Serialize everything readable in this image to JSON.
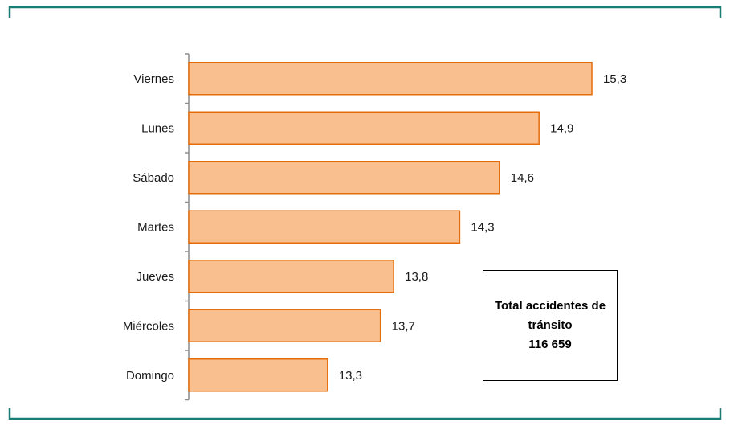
{
  "chart_data": {
    "type": "bar",
    "orientation": "horizontal",
    "categories": [
      "Viernes",
      "Lunes",
      "Sábado",
      "Martes",
      "Jueves",
      "Miércoles",
      "Domingo"
    ],
    "values": [
      15.3,
      14.9,
      14.6,
      14.3,
      13.8,
      13.7,
      13.3
    ],
    "value_labels": [
      "15,3",
      "14,9",
      "14,6",
      "14,3",
      "13,8",
      "13,7",
      "13,3"
    ],
    "title": "",
    "xlabel": "",
    "ylabel": "",
    "xlim": [
      12.25,
      15.3
    ],
    "grid": false,
    "legend": "none",
    "colors": {
      "bar_fill": "#f9bf8f",
      "bar_stroke": "#e46c0a",
      "frame": "#1a7d75",
      "axis": "#8c8c8c"
    }
  },
  "annotation": {
    "line1": "Total accidentes de",
    "line2": "tránsito",
    "line3": "116 659"
  }
}
